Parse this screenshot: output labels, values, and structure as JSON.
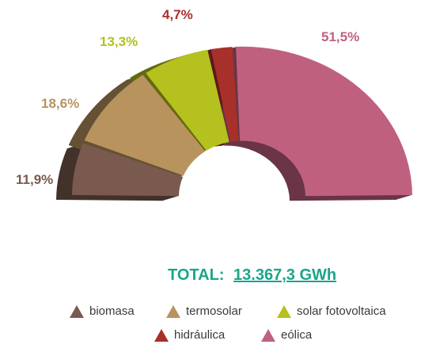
{
  "chart_data": {
    "type": "pie",
    "subtype": "3d-half-donut",
    "categories": [
      "biomasa",
      "termosolar",
      "solar fotovoltaica",
      "hidráulica",
      "eólica"
    ],
    "values": [
      11.9,
      18.6,
      13.3,
      4.7,
      51.5
    ],
    "labels": [
      "11,9%",
      "18,6%",
      "13,3%",
      "4,7%",
      "51,5%"
    ],
    "colors": [
      "#7a5a4f",
      "#b8935e",
      "#b5c11e",
      "#a8302b",
      "#c0607f"
    ],
    "label_colors": [
      "#7a5a4f",
      "#b8935e",
      "#b5c11e",
      "#a8302b",
      "#c0607f"
    ],
    "legend_placement": "bottom"
  },
  "total": {
    "label": "TOTAL:",
    "value": "13.367,3 GWh"
  },
  "legend": {
    "items": [
      {
        "label": "biomasa",
        "color": "#7a5a4f"
      },
      {
        "label": "termosolar",
        "color": "#b8935e"
      },
      {
        "label": "solar fotovoltaica",
        "color": "#b5c11e"
      },
      {
        "label": "hidráulica",
        "color": "#a8302b"
      },
      {
        "label": "eólica",
        "color": "#c0607f"
      }
    ]
  }
}
